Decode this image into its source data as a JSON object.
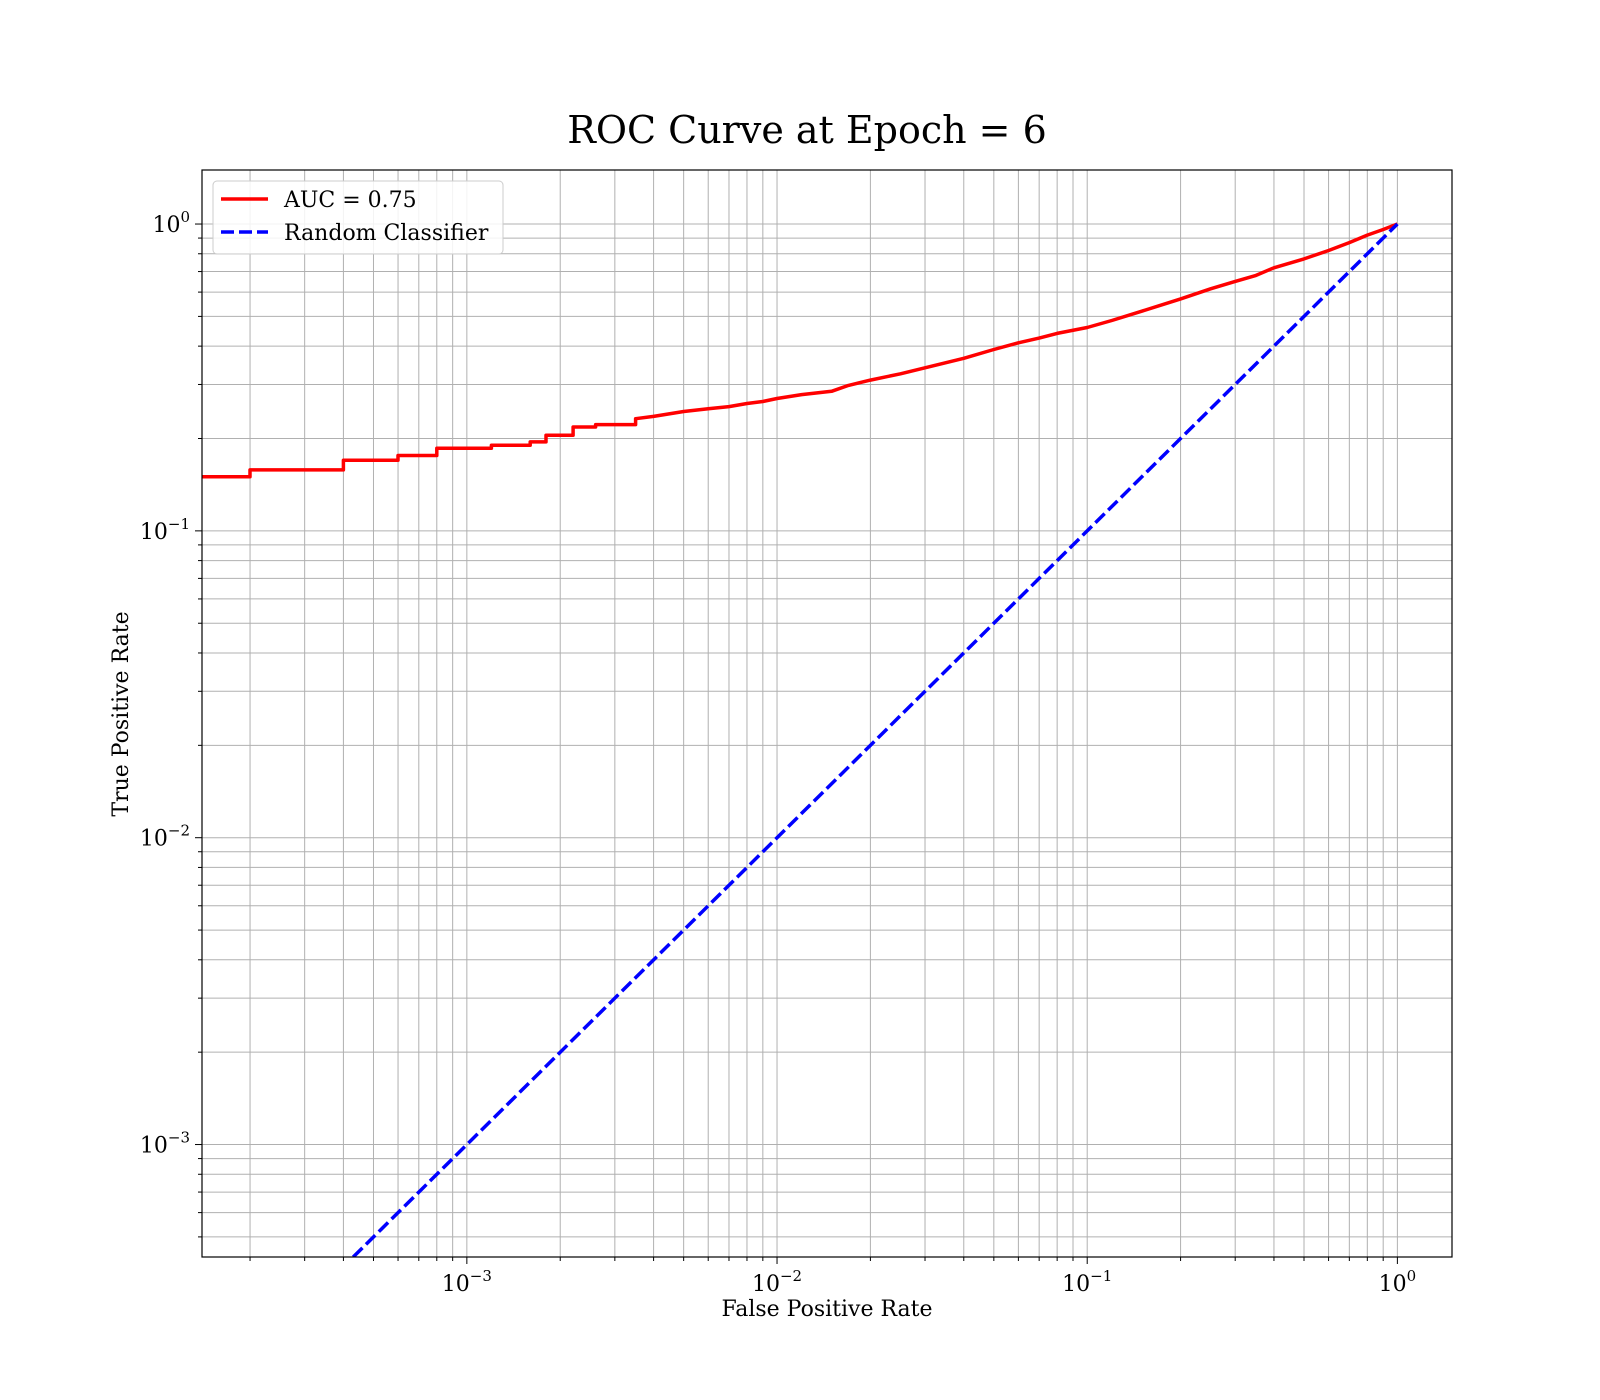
{
  "chart_data": {
    "type": "line",
    "title": "ROC Curve at Epoch = 6",
    "xlabel": "False Positive Rate",
    "ylabel": "True Positive Rate",
    "xscale": "log",
    "yscale": "log",
    "xlim": [
      0.00014,
      1.5
    ],
    "ylim": [
      0.00043,
      1.5
    ],
    "grid": true,
    "grid_minor": true,
    "legend_placement": "top-left",
    "x_ticks": [
      {
        "value": 0.001,
        "base": "10",
        "exp": "−3"
      },
      {
        "value": 0.01,
        "base": "10",
        "exp": "−2"
      },
      {
        "value": 0.1,
        "base": "10",
        "exp": "−1"
      },
      {
        "value": 1,
        "base": "10",
        "exp": "0"
      }
    ],
    "y_ticks": [
      {
        "value": 0.001,
        "base": "10",
        "exp": "−3"
      },
      {
        "value": 0.01,
        "base": "10",
        "exp": "−2"
      },
      {
        "value": 0.1,
        "base": "10",
        "exp": "−1"
      },
      {
        "value": 1,
        "base": "10",
        "exp": "0"
      }
    ],
    "series": [
      {
        "name": "AUC = 0.75",
        "color": "#ff0000",
        "style": "solid",
        "x": [
          0.00014,
          0.0002,
          0.0002,
          0.0004,
          0.0004,
          0.0006,
          0.0006,
          0.0008,
          0.0008,
          0.0012,
          0.0012,
          0.0016,
          0.0016,
          0.0018,
          0.0018,
          0.0022,
          0.0022,
          0.0026,
          0.0026,
          0.0035,
          0.0035,
          0.004,
          0.005,
          0.006,
          0.007,
          0.008,
          0.009,
          0.01,
          0.012,
          0.015,
          0.017,
          0.02,
          0.025,
          0.03,
          0.04,
          0.05,
          0.06,
          0.07,
          0.08,
          0.1,
          0.12,
          0.15,
          0.2,
          0.25,
          0.3,
          0.35,
          0.4,
          0.5,
          0.6,
          0.7,
          0.8,
          0.9,
          1.0
        ],
        "y": [
          0.15,
          0.15,
          0.158,
          0.158,
          0.17,
          0.17,
          0.176,
          0.176,
          0.186,
          0.186,
          0.19,
          0.19,
          0.195,
          0.195,
          0.205,
          0.205,
          0.218,
          0.218,
          0.222,
          0.222,
          0.232,
          0.236,
          0.245,
          0.25,
          0.254,
          0.26,
          0.264,
          0.27,
          0.278,
          0.285,
          0.298,
          0.31,
          0.325,
          0.34,
          0.365,
          0.39,
          0.41,
          0.425,
          0.44,
          0.46,
          0.485,
          0.52,
          0.57,
          0.615,
          0.65,
          0.68,
          0.72,
          0.77,
          0.82,
          0.87,
          0.92,
          0.96,
          1.0
        ]
      },
      {
        "name": "Random Classifier",
        "color": "#0000ff",
        "style": "dashed",
        "x": [
          0.00043,
          1.0
        ],
        "y": [
          0.00043,
          1.0
        ]
      }
    ]
  }
}
